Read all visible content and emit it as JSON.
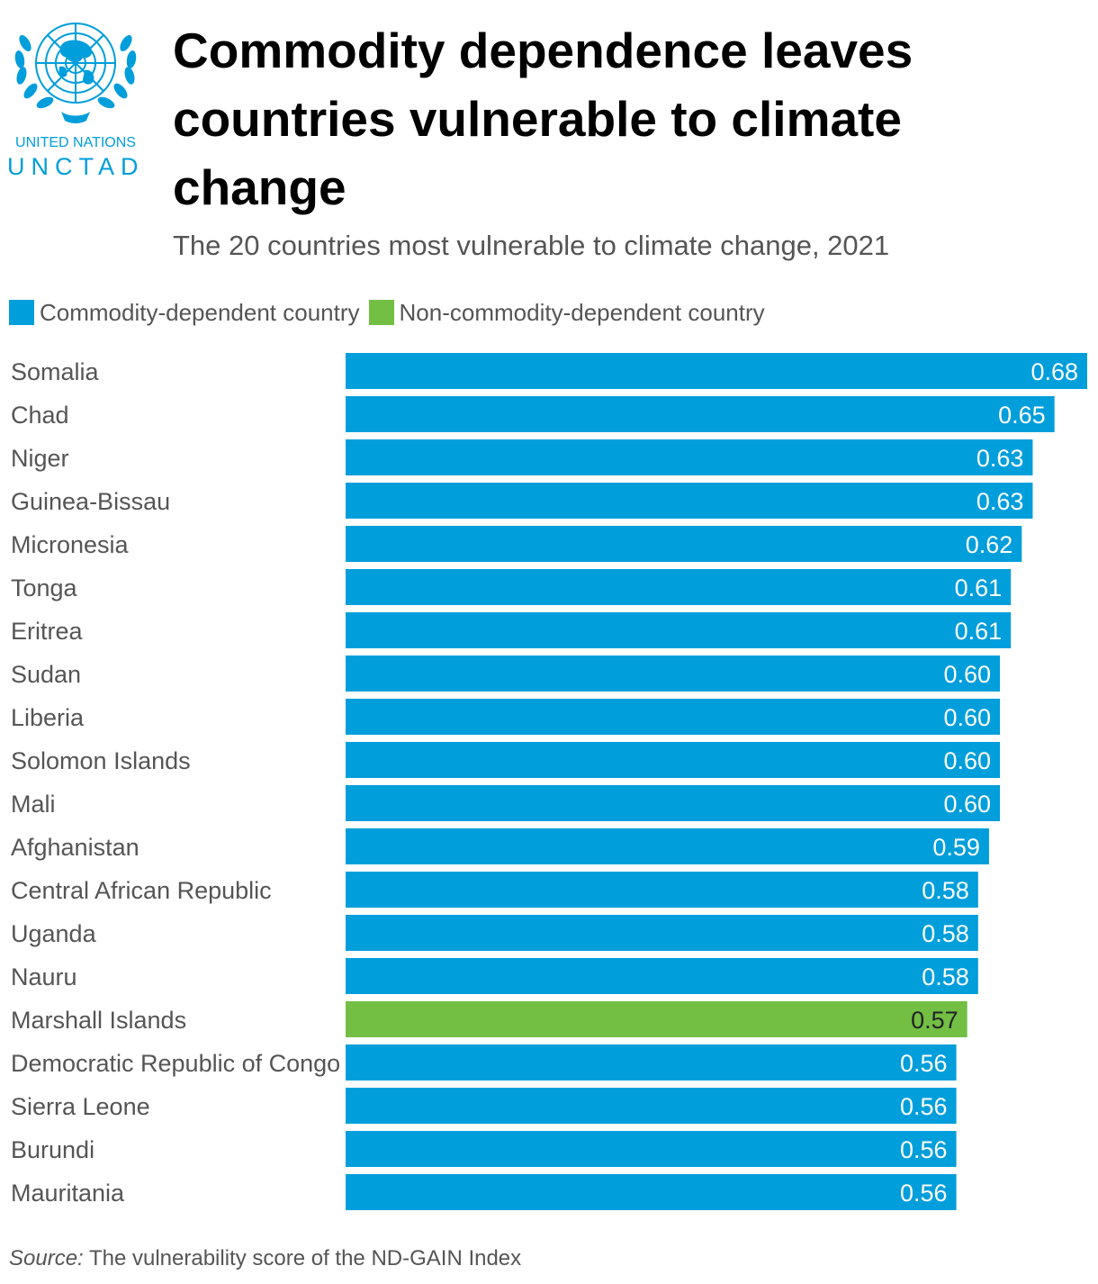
{
  "logo": {
    "line1": "UNITED NATIONS",
    "line2": "UNCTAD",
    "emblem": "un-emblem-icon"
  },
  "colors": {
    "commodity": "#009edb",
    "non_commodity": "#72bf44",
    "label_text": "#555555"
  },
  "legend": [
    {
      "label": "Commodity-dependent country",
      "color": "#009edb"
    },
    {
      "label": "Non-commodity-dependent country",
      "color": "#72bf44"
    }
  ],
  "chart_data": {
    "type": "bar",
    "orientation": "horizontal",
    "title": "Commodity dependence leaves countries vulnerable to climate change",
    "subtitle": "The 20 countries most vulnerable to climate change, 2021",
    "categories": [
      "Somalia",
      "Chad",
      "Niger",
      "Guinea-Bissau",
      "Micronesia",
      "Tonga",
      "Eritrea",
      "Sudan",
      "Liberia",
      "Solomon Islands",
      "Mali",
      "Afghanistan",
      "Central African Republic",
      "Uganda",
      "Nauru",
      "Marshall Islands",
      "Democratic Republic of Congo",
      "Sierra Leone",
      "Burundi",
      "Mauritania"
    ],
    "values": [
      0.68,
      0.65,
      0.63,
      0.63,
      0.62,
      0.61,
      0.61,
      0.6,
      0.6,
      0.6,
      0.6,
      0.59,
      0.58,
      0.58,
      0.58,
      0.57,
      0.56,
      0.56,
      0.56,
      0.56
    ],
    "value_labels": [
      "0.68",
      "0.65",
      "0.63",
      "0.63",
      "0.62",
      "0.61",
      "0.61",
      "0.60",
      "0.60",
      "0.60",
      "0.60",
      "0.59",
      "0.58",
      "0.58",
      "0.58",
      "0.57",
      "0.56",
      "0.56",
      "0.56",
      "0.56"
    ],
    "groups": [
      "commodity",
      "commodity",
      "commodity",
      "commodity",
      "commodity",
      "commodity",
      "commodity",
      "commodity",
      "commodity",
      "commodity",
      "commodity",
      "commodity",
      "commodity",
      "commodity",
      "commodity",
      "non_commodity",
      "commodity",
      "commodity",
      "commodity",
      "commodity"
    ],
    "xlim": [
      0,
      0.68
    ],
    "xlabel": "",
    "ylabel": "",
    "grid": false,
    "legend_position": "top-left"
  },
  "source": {
    "prefix": "Source:",
    "text": " The vulnerability score of the ND-GAIN Index"
  }
}
